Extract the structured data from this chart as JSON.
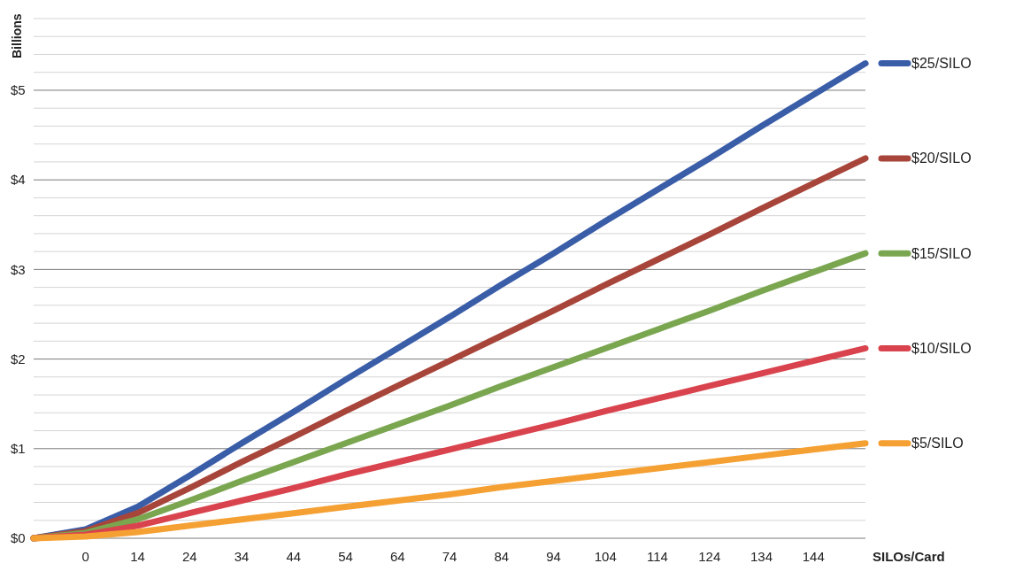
{
  "chart_data": {
    "type": "line",
    "xlabel": "SILOs/Card",
    "ylabel": "Billions",
    "categories": [
      null,
      "0",
      "14",
      "24",
      "34",
      "44",
      "54",
      "64",
      "74",
      "84",
      "94",
      "104",
      "114",
      "124",
      "134",
      "144",
      null
    ],
    "ylim": [
      0,
      5.8
    ],
    "yticks": [
      {
        "value": 0,
        "label": "$0"
      },
      {
        "value": 0.2,
        "label": null
      },
      {
        "value": 0.4,
        "label": null
      },
      {
        "value": 0.6,
        "label": null
      },
      {
        "value": 0.8,
        "label": null
      },
      {
        "value": 1,
        "label": "$1"
      },
      {
        "value": 1.2,
        "label": null
      },
      {
        "value": 1.4,
        "label": null
      },
      {
        "value": 1.6,
        "label": null
      },
      {
        "value": 1.8,
        "label": null
      },
      {
        "value": 2,
        "label": "$2"
      },
      {
        "value": 2.2,
        "label": null
      },
      {
        "value": 2.4,
        "label": null
      },
      {
        "value": 2.6,
        "label": null
      },
      {
        "value": 2.8,
        "label": null
      },
      {
        "value": 3,
        "label": "$3"
      },
      {
        "value": 3.2,
        "label": null
      },
      {
        "value": 3.4,
        "label": null
      },
      {
        "value": 3.6,
        "label": null
      },
      {
        "value": 3.8,
        "label": null
      },
      {
        "value": 4,
        "label": "$4"
      },
      {
        "value": 4.2,
        "label": null
      },
      {
        "value": 4.4,
        "label": null
      },
      {
        "value": 4.6,
        "label": null
      },
      {
        "value": 4.8,
        "label": null
      },
      {
        "value": 5,
        "label": "$5"
      },
      {
        "value": 5.2,
        "label": null
      },
      {
        "value": 5.4,
        "label": null
      },
      {
        "value": 5.6,
        "label": null
      },
      {
        "value": 5.8,
        "label": null
      }
    ],
    "grid": "y",
    "legend": "right",
    "line_style": "solid",
    "series": [
      {
        "name": "$25/SILO",
        "color": "#3a5da8",
        "values": [
          0,
          0.1,
          0.35,
          0.7,
          1.06,
          1.41,
          1.77,
          2.12,
          2.47,
          2.83,
          3.18,
          3.54,
          3.89,
          4.24,
          4.6,
          4.95,
          5.3
        ]
      },
      {
        "name": "$20/SILO",
        "color": "#a8453a",
        "values": [
          0,
          0.08,
          0.28,
          0.56,
          0.85,
          1.13,
          1.42,
          1.7,
          1.98,
          2.26,
          2.54,
          2.83,
          3.11,
          3.39,
          3.68,
          3.96,
          4.24
        ]
      },
      {
        "name": "$15/SILO",
        "color": "#7aa650",
        "values": [
          0,
          0.06,
          0.21,
          0.42,
          0.64,
          0.85,
          1.06,
          1.27,
          1.48,
          1.7,
          1.91,
          2.12,
          2.33,
          2.54,
          2.76,
          2.97,
          3.18
        ]
      },
      {
        "name": "$10/SILO",
        "color": "#d9434d",
        "values": [
          0,
          0.04,
          0.14,
          0.28,
          0.42,
          0.56,
          0.71,
          0.85,
          0.99,
          1.13,
          1.27,
          1.42,
          1.56,
          1.7,
          1.84,
          1.98,
          2.12
        ]
      },
      {
        "name": "$5/SILO",
        "color": "#f5a033",
        "values": [
          0,
          0.02,
          0.07,
          0.14,
          0.21,
          0.28,
          0.35,
          0.42,
          0.49,
          0.57,
          0.64,
          0.71,
          0.78,
          0.85,
          0.92,
          0.99,
          1.06
        ]
      }
    ]
  }
}
